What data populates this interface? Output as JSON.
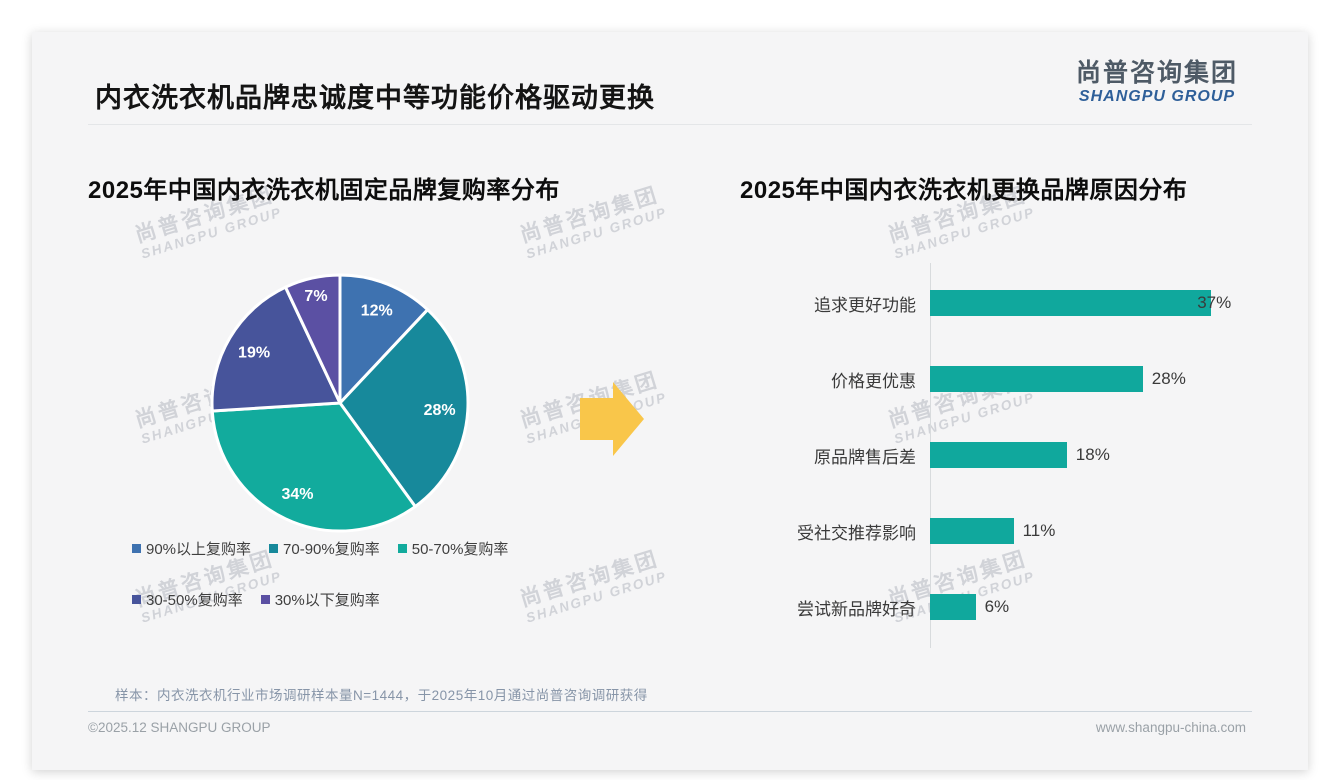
{
  "page": {
    "title": "内衣洗衣机品牌忠诚度中等功能价格驱动更换",
    "logo": {
      "cn": "尚普咨询集团",
      "en": "SHANGPU GROUP"
    },
    "watermark": {
      "cn": "尚普咨询集团",
      "en": "SHANGPU GROUP"
    },
    "footnote": "样本：内衣洗衣机行业市场调研样本量N=1444，于2025年10月通过尚普咨询调研获得",
    "footer_left": "©2025.12 SHANGPU GROUP",
    "footer_right": "www.shangpu-china.com",
    "arrow_color": "#f9c64a"
  },
  "chart_data": [
    {
      "type": "pie",
      "title": "2025年中国内衣洗衣机固定品牌复购率分布",
      "categories": [
        "90%以上复购率",
        "70-90%复购率",
        "50-70%复购率",
        "30-50%复购率",
        "30%以下复购率"
      ],
      "values": [
        12,
        28,
        34,
        19,
        7
      ],
      "labels": [
        "12%",
        "28%",
        "34%",
        "19%",
        "7%"
      ],
      "colors": [
        "#3e72b0",
        "#17899b",
        "#12ab9d",
        "#47549b",
        "#5b50a3"
      ],
      "start_angle_deg": 0,
      "direction": "clockwise",
      "legend_position": "bottom",
      "slice_border_color": "#ffffff"
    },
    {
      "type": "bar",
      "title": "2025年中国内衣洗衣机更换品牌原因分布",
      "orientation": "horizontal",
      "categories": [
        "追求更好功能",
        "价格更优惠",
        "原品牌售后差",
        "受社交推荐影响",
        "尝试新品牌好奇"
      ],
      "values": [
        37,
        28,
        18,
        11,
        6
      ],
      "value_labels": [
        "37%",
        "28%",
        "18%",
        "11%",
        "6%"
      ],
      "bar_color": "#10a89d",
      "xlim": [
        0,
        40
      ],
      "grid": false,
      "axis_color": "#d8dbdd"
    }
  ]
}
